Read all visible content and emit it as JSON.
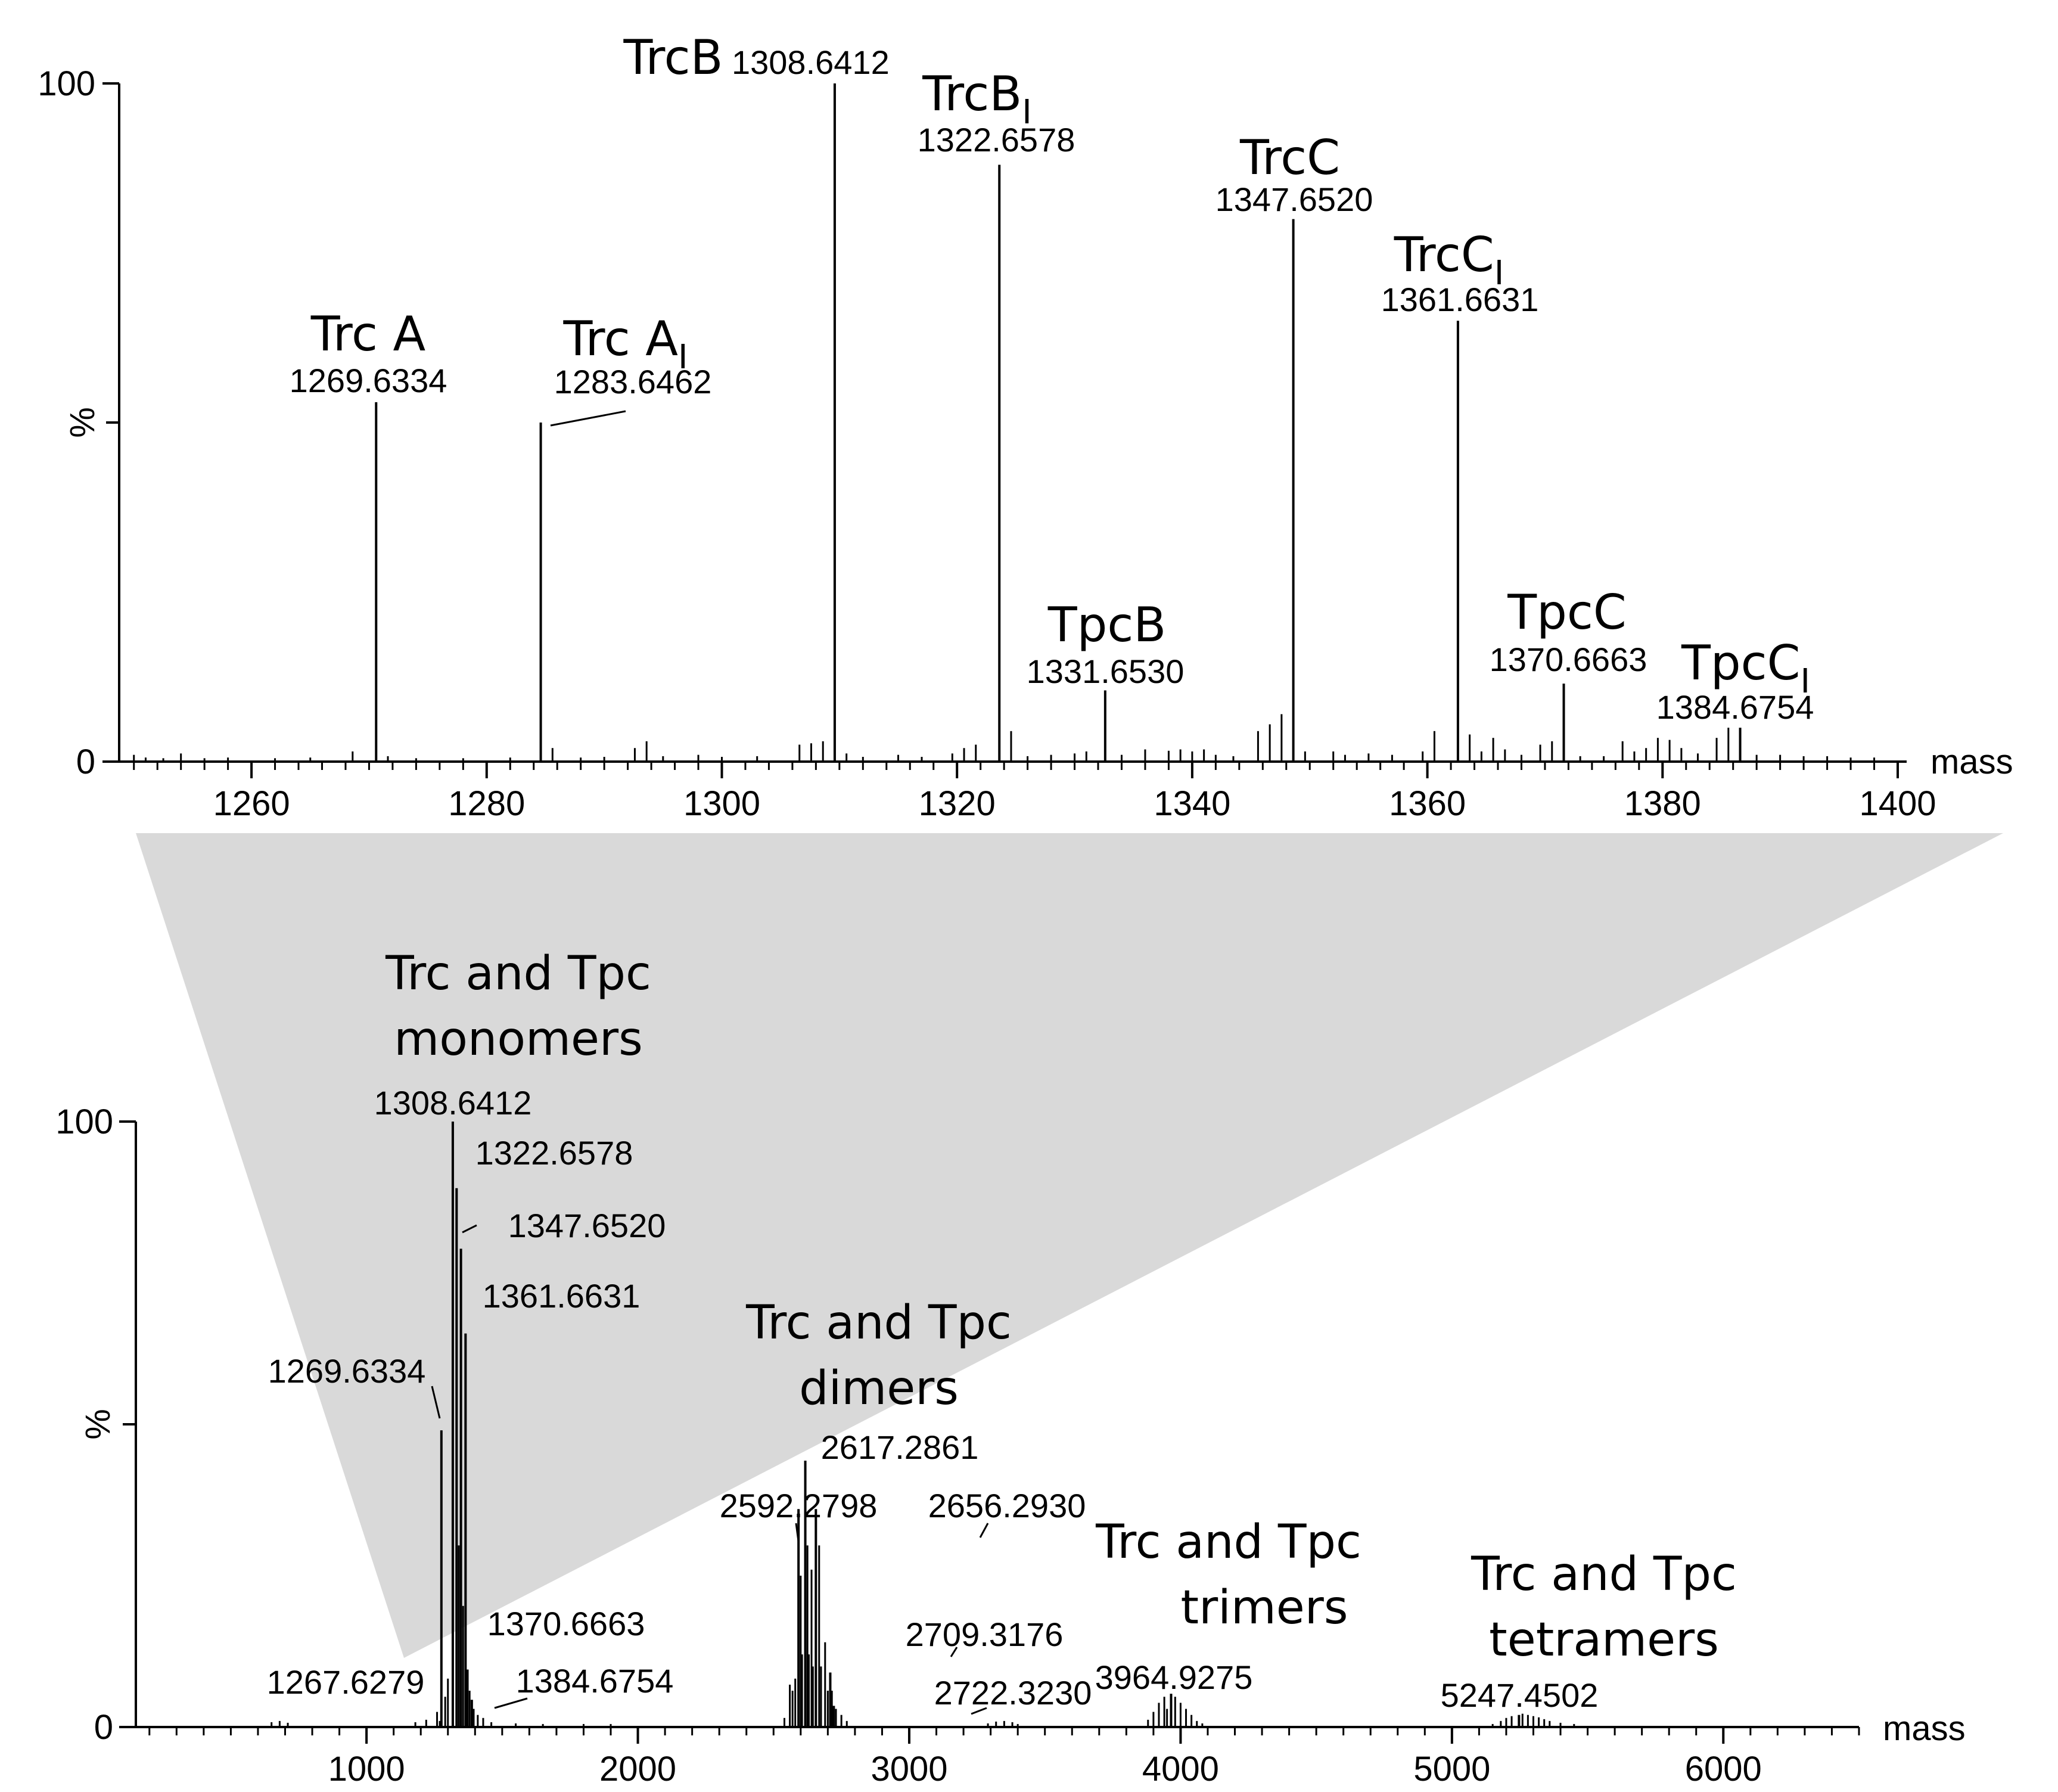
{
  "colors": {
    "zoom_fill": "#d9d9d9",
    "ink": "#000000"
  },
  "chart_data": [
    {
      "type": "bar",
      "title": "",
      "xlabel": "mass",
      "ylabel": "%",
      "xlim": [
        1249,
        1400
      ],
      "ylim": [
        0,
        100
      ],
      "xticks": [
        "1260",
        "1280",
        "1300",
        "1320",
        "1340",
        "1360",
        "1380",
        "1400"
      ],
      "yticks": [
        "0",
        "100"
      ],
      "peaks": [
        {
          "mass": "1269.6334",
          "x": 1270.6,
          "y": 53,
          "name": "Trc A",
          "sub": ""
        },
        {
          "mass": "1283.6462",
          "x": 1284.6,
          "y": 50,
          "name": "Trc A",
          "sub": "I"
        },
        {
          "mass": "1308.6412",
          "x": 1309.6,
          "y": 100,
          "name": "TrcB",
          "sub": ""
        },
        {
          "mass": "1322.6578",
          "x": 1323.6,
          "y": 88,
          "name": "TrcB",
          "sub": "I"
        },
        {
          "mass": "1331.6530",
          "x": 1332.6,
          "y": 10.5,
          "name": "TpcB",
          "sub": ""
        },
        {
          "mass": "1347.6520",
          "x": 1348.6,
          "y": 80,
          "name": "TrcC",
          "sub": ""
        },
        {
          "mass": "1361.6631",
          "x": 1362.6,
          "y": 65,
          "name": "TrcC",
          "sub": "I"
        },
        {
          "mass": "1370.6663",
          "x": 1371.6,
          "y": 11.5,
          "name": "TpcC",
          "sub": ""
        },
        {
          "mass": "1384.6754",
          "x": 1386.6,
          "y": 5,
          "name": "TpcC",
          "sub": "I"
        }
      ],
      "minor_peaks": [
        [
          1250,
          1.0
        ],
        [
          1251,
          0.6
        ],
        [
          1252.5,
          0.5
        ],
        [
          1254,
          1.2
        ],
        [
          1256,
          0.5
        ],
        [
          1258,
          0.6
        ],
        [
          1262,
          0.5
        ],
        [
          1265,
          0.6
        ],
        [
          1268.6,
          1.5
        ],
        [
          1271.6,
          0.8
        ],
        [
          1274,
          0.5
        ],
        [
          1278,
          0.5
        ],
        [
          1282,
          0.6
        ],
        [
          1285.6,
          2.0
        ],
        [
          1288,
          0.6
        ],
        [
          1290,
          0.7
        ],
        [
          1292.6,
          2.0
        ],
        [
          1293.6,
          3.0
        ],
        [
          1295,
          0.8
        ],
        [
          1298,
          1.0
        ],
        [
          1300,
          0.7
        ],
        [
          1303,
          0.8
        ],
        [
          1306.6,
          2.5
        ],
        [
          1307.6,
          2.7
        ],
        [
          1308.6,
          3.0
        ],
        [
          1310.6,
          1.2
        ],
        [
          1312,
          0.7
        ],
        [
          1315,
          1.0
        ],
        [
          1317,
          0.7
        ],
        [
          1319.6,
          1.2
        ],
        [
          1320.6,
          2.0
        ],
        [
          1321.6,
          2.5
        ],
        [
          1324.6,
          4.5
        ],
        [
          1326,
          0.8
        ],
        [
          1328,
          1.0
        ],
        [
          1330,
          1.2
        ],
        [
          1331,
          1.5
        ],
        [
          1334,
          1.0
        ],
        [
          1336,
          1.8
        ],
        [
          1338,
          1.6
        ],
        [
          1339,
          1.8
        ],
        [
          1340,
          1.5
        ],
        [
          1341,
          1.8
        ],
        [
          1342,
          1.0
        ],
        [
          1343.5,
          0.8
        ],
        [
          1345.6,
          4.5
        ],
        [
          1346.6,
          5.5
        ],
        [
          1347.6,
          7.0
        ],
        [
          1349.6,
          1.5
        ],
        [
          1352,
          1.5
        ],
        [
          1353,
          1.0
        ],
        [
          1355,
          1.2
        ],
        [
          1357,
          1.0
        ],
        [
          1359.6,
          1.5
        ],
        [
          1360.6,
          4.5
        ],
        [
          1363.6,
          4.0
        ],
        [
          1364.6,
          1.5
        ],
        [
          1365.6,
          3.5
        ],
        [
          1366.6,
          1.8
        ],
        [
          1368,
          1.0
        ],
        [
          1369.6,
          2.5
        ],
        [
          1370.6,
          3.0
        ],
        [
          1373,
          0.8
        ],
        [
          1375,
          0.8
        ],
        [
          1376.6,
          3.0
        ],
        [
          1377.6,
          1.5
        ],
        [
          1378.6,
          2.0
        ],
        [
          1379.6,
          3.5
        ],
        [
          1380.6,
          3.2
        ],
        [
          1381.6,
          2.0
        ],
        [
          1383,
          1.2
        ],
        [
          1384.6,
          3.5
        ],
        [
          1385.6,
          5.0
        ],
        [
          1388,
          1.0
        ],
        [
          1390,
          1.0
        ],
        [
          1392,
          0.8
        ],
        [
          1394,
          0.8
        ],
        [
          1396,
          0.6
        ],
        [
          1398,
          0.6
        ]
      ]
    },
    {
      "type": "bar",
      "title": "",
      "xlabel": "mass",
      "ylabel": "%",
      "xlim": [
        150,
        6500
      ],
      "ylim": [
        0,
        100
      ],
      "xticks": [
        "1000",
        "2000",
        "3000",
        "4000",
        "5000",
        "6000"
      ],
      "yticks": [
        "0",
        "100"
      ],
      "groups": [
        {
          "line1": "Trc and  Tpc",
          "line2": "monomers"
        },
        {
          "line1": "Trc and  Tpc",
          "line2": "dimers"
        },
        {
          "line1": "Trc and  Tpc",
          "line2": "trimers"
        },
        {
          "line1": "Trc and  Tpc",
          "line2": "tetramers"
        }
      ],
      "peaks": [
        {
          "mass": "1267.6279",
          "x": 1271,
          "y": 1.0
        },
        {
          "mass": "1269.6334",
          "x": 1276,
          "y": 49
        },
        {
          "mass": "1308.6412",
          "x": 1318,
          "y": 100
        },
        {
          "mass": "1322.6578",
          "x": 1332,
          "y": 89
        },
        {
          "mass": "1347.6520",
          "x": 1348,
          "y": 79
        },
        {
          "mass": "1361.6631",
          "x": 1365,
          "y": 65
        },
        {
          "mass": "1370.6663",
          "x": 1372,
          "y": 9.5
        },
        {
          "mass": "1384.6754",
          "x": 1388,
          "y": 4.5
        },
        {
          "mass": "2592.2798",
          "x": 2592,
          "y": 36
        },
        {
          "mass": "2617.2861",
          "x": 2617,
          "y": 44
        },
        {
          "mass": "2656.2930",
          "x": 2656,
          "y": 36
        },
        {
          "mass": "2709.3176",
          "x": 2709,
          "y": 9
        },
        {
          "mass": "2722.3230",
          "x": 2722,
          "y": 3.5
        },
        {
          "mass": "3964.9275",
          "x": 3965,
          "y": 5.5
        },
        {
          "mass": "5247.4502",
          "x": 5247,
          "y": 2
        }
      ],
      "minor_peaks": [
        [
          650,
          0.8
        ],
        [
          680,
          1.0
        ],
        [
          710,
          0.7
        ],
        [
          1180,
          0.8
        ],
        [
          1220,
          1.2
        ],
        [
          1260,
          2.5
        ],
        [
          1290,
          5.0
        ],
        [
          1300,
          8.0
        ],
        [
          1340,
          30.0
        ],
        [
          1356,
          20.0
        ],
        [
          1380,
          6.0
        ],
        [
          1395,
          3.0
        ],
        [
          1410,
          2.0
        ],
        [
          1430,
          1.5
        ],
        [
          1460,
          0.8
        ],
        [
          1550,
          0.6
        ],
        [
          1650,
          0.5
        ],
        [
          1800,
          0.5
        ],
        [
          1900,
          0.5
        ],
        [
          2540,
          1.5
        ],
        [
          2560,
          7.0
        ],
        [
          2570,
          6.0
        ],
        [
          2580,
          8.0
        ],
        [
          2600,
          25.0
        ],
        [
          2605,
          12.0
        ],
        [
          2625,
          30.0
        ],
        [
          2630,
          12.0
        ],
        [
          2640,
          26.0
        ],
        [
          2645,
          10.0
        ],
        [
          2668,
          30.0
        ],
        [
          2675,
          10.0
        ],
        [
          2690,
          14.0
        ],
        [
          2700,
          6.0
        ],
        [
          2715,
          6.0
        ],
        [
          2730,
          3.0
        ],
        [
          2750,
          2.0
        ],
        [
          2770,
          1.0
        ],
        [
          3290,
          0.6
        ],
        [
          3320,
          0.9
        ],
        [
          3350,
          1.0
        ],
        [
          3380,
          0.8
        ],
        [
          3400,
          0.5
        ],
        [
          3880,
          1.2
        ],
        [
          3900,
          2.5
        ],
        [
          3920,
          4.0
        ],
        [
          3940,
          5.0
        ],
        [
          3950,
          3.0
        ],
        [
          3980,
          5.0
        ],
        [
          4000,
          4.0
        ],
        [
          4020,
          3.0
        ],
        [
          4040,
          2.0
        ],
        [
          4060,
          1.0
        ],
        [
          4080,
          0.6
        ],
        [
          5150,
          0.5
        ],
        [
          5180,
          1.0
        ],
        [
          5200,
          1.5
        ],
        [
          5220,
          1.8
        ],
        [
          5260,
          2.2
        ],
        [
          5280,
          2.0
        ],
        [
          5300,
          1.8
        ],
        [
          5320,
          1.6
        ],
        [
          5340,
          1.3
        ],
        [
          5360,
          1.0
        ],
        [
          5400,
          0.7
        ],
        [
          5450,
          0.5
        ]
      ]
    }
  ]
}
